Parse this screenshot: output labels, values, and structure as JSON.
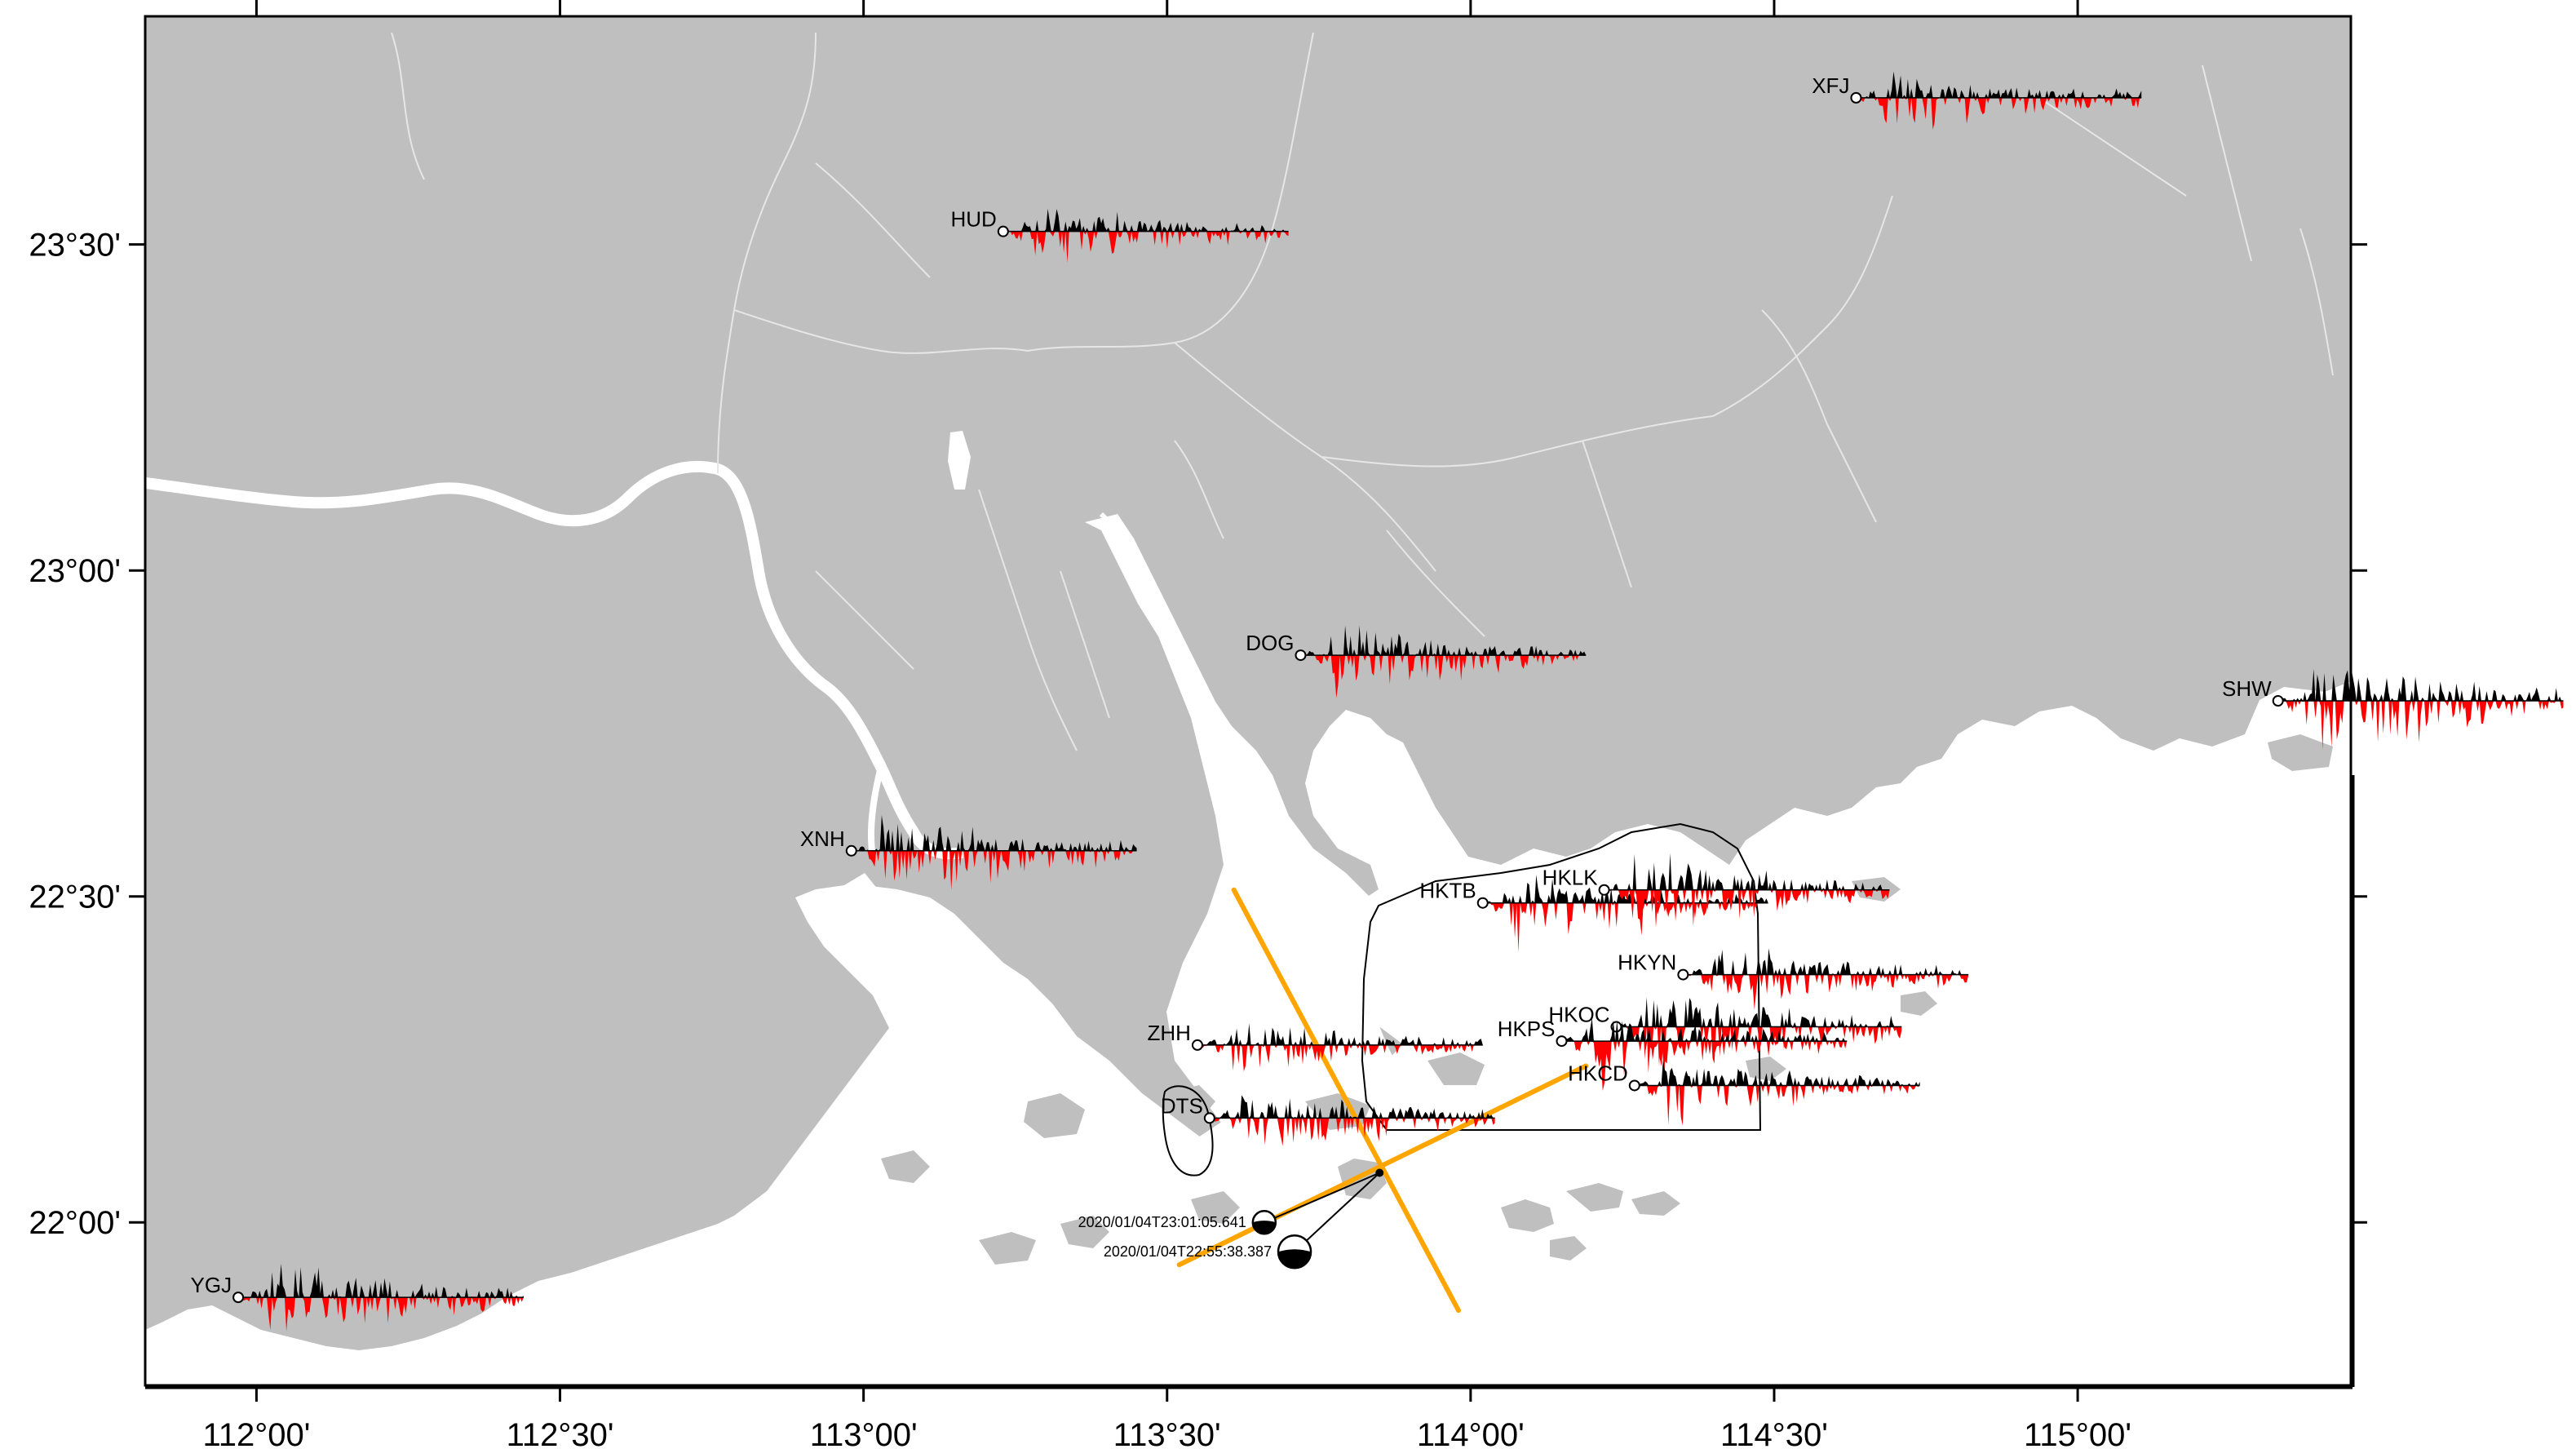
{
  "map": {
    "lon_range": [
      111.8167,
      115.45
    ],
    "lat_range": [
      21.75,
      23.85
    ],
    "colors": {
      "land": "#bfbfbf",
      "water": "#ffffff",
      "positive": "#000000",
      "negative": "#ff0000",
      "fault": "#ffa500",
      "frame": "#000000",
      "river": "#e6e6e6"
    },
    "x_ticks": [
      {
        "lon": 112.0,
        "label": "112°00'"
      },
      {
        "lon": 112.5,
        "label": "112°30'"
      },
      {
        "lon": 113.0,
        "label": "113°00'"
      },
      {
        "lon": 113.5,
        "label": "113°30'"
      },
      {
        "lon": 114.0,
        "label": "114°00'"
      },
      {
        "lon": 114.5,
        "label": "114°30'"
      },
      {
        "lon": 115.0,
        "label": "115°00'"
      }
    ],
    "y_ticks": [
      {
        "lat": 23.5,
        "label": "23°30'"
      },
      {
        "lat": 23.0,
        "label": "23°00'"
      },
      {
        "lat": 22.5,
        "label": "22°30'"
      },
      {
        "lat": 22.0,
        "label": "22°00'"
      }
    ]
  },
  "stations": [
    {
      "code": "XFJ",
      "lon": 114.635,
      "lat": 23.725,
      "trace_len_deg": 0.47,
      "seed": 3,
      "amp": 1.0
    },
    {
      "code": "HUD",
      "lon": 113.23,
      "lat": 23.52,
      "trace_len_deg": 0.47,
      "seed": 7,
      "amp": 1.0
    },
    {
      "code": "DOG",
      "lon": 113.72,
      "lat": 22.87,
      "trace_len_deg": 0.47,
      "seed": 11,
      "amp": 1.0
    },
    {
      "code": "SHW",
      "lon": 115.33,
      "lat": 22.8,
      "trace_len_deg": 0.47,
      "seed": 13,
      "amp": 1.5
    },
    {
      "code": "XNH",
      "lon": 112.98,
      "lat": 22.57,
      "trace_len_deg": 0.47,
      "seed": 17,
      "amp": 1.3
    },
    {
      "code": "HKTB",
      "lon": 114.02,
      "lat": 22.49,
      "trace_len_deg": 0.47,
      "seed": 19,
      "amp": 1.0
    },
    {
      "code": "HKLK",
      "lon": 114.22,
      "lat": 22.51,
      "trace_len_deg": 0.47,
      "seed": 23,
      "amp": 1.2
    },
    {
      "code": "HKYN",
      "lon": 114.35,
      "lat": 22.38,
      "trace_len_deg": 0.47,
      "seed": 29,
      "amp": 1.0
    },
    {
      "code": "HKOC",
      "lon": 114.24,
      "lat": 22.3,
      "trace_len_deg": 0.47,
      "seed": 31,
      "amp": 1.3
    },
    {
      "code": "HKPS",
      "lon": 114.15,
      "lat": 22.278,
      "trace_len_deg": 0.47,
      "seed": 37,
      "amp": 1.1
    },
    {
      "code": "ZHH",
      "lon": 113.55,
      "lat": 22.272,
      "trace_len_deg": 0.47,
      "seed": 41,
      "amp": 0.8
    },
    {
      "code": "HKCD",
      "lon": 114.27,
      "lat": 22.21,
      "trace_len_deg": 0.47,
      "seed": 43,
      "amp": 1.0
    },
    {
      "code": "DTS",
      "lon": 113.57,
      "lat": 22.16,
      "trace_len_deg": 0.47,
      "seed": 47,
      "amp": 1.1
    },
    {
      "code": "YGJ",
      "lon": 111.97,
      "lat": 21.885,
      "trace_len_deg": 0.47,
      "seed": 53,
      "amp": 1.2
    }
  ],
  "events": [
    {
      "label": "2020/01/04T23:01:05.641",
      "lon": 113.66,
      "lat": 22.0,
      "size": "small"
    },
    {
      "label": "2020/01/04T22:55:38.387",
      "lon": 113.71,
      "lat": 21.955,
      "size": "large"
    }
  ],
  "epicenter": {
    "lon": 113.85,
    "lat": 22.076
  },
  "fault_lines": [
    {
      "from": {
        "lon": 113.61,
        "lat": 22.51
      },
      "to": {
        "lon": 113.98,
        "lat": 21.865
      }
    },
    {
      "from": {
        "lon": 113.52,
        "lat": 21.935
      },
      "to": {
        "lon": 114.19,
        "lat": 22.24
      }
    }
  ]
}
